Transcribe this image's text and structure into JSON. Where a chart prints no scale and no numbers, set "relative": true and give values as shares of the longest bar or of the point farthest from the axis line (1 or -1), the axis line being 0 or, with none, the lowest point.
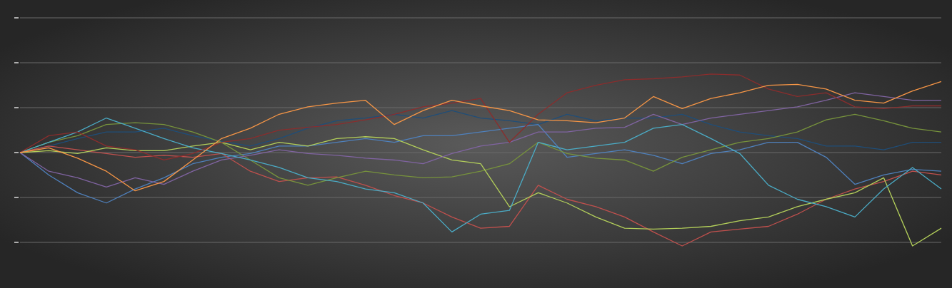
{
  "chart_data": {
    "type": "line",
    "relative": true,
    "grid": "y",
    "categories": [
      null,
      null,
      null,
      null,
      null,
      null,
      null,
      null,
      null,
      null,
      null,
      null,
      null,
      null,
      null,
      null,
      null,
      null,
      null,
      null,
      null,
      null,
      null,
      null,
      null,
      null,
      null,
      null,
      null,
      null,
      null,
      null,
      null
    ],
    "series": [
      {
        "color": "#1f4e79",
        "values": [
          0,
          0.07,
          0.15,
          0.22,
          0.22,
          0.26,
          0.18,
          0.12,
          0.07,
          0.15,
          0.26,
          0.34,
          0.37,
          0.41,
          0.37,
          0.45,
          0.37,
          0.34,
          0.3,
          0.41,
          0.34,
          0.37,
          0.37,
          0.41,
          0.3,
          0.22,
          0.18,
          0.15,
          0.07,
          0.07,
          0.03,
          0.11,
          0.11
        ]
      },
      {
        "color": "#4f81bd",
        "values": [
          0,
          -0.24,
          -0.43,
          -0.54,
          -0.39,
          -0.27,
          -0.12,
          -0.05,
          -0.01,
          0.07,
          0.07,
          0.11,
          0.15,
          0.11,
          0.18,
          0.18,
          0.22,
          0.26,
          0.3,
          -0.05,
          -0.01,
          0.03,
          -0.03,
          -0.12,
          -0.01,
          0.03,
          0.11,
          0.11,
          -0.05,
          -0.34,
          -0.24,
          -0.18,
          -0.2
        ]
      },
      {
        "color": "#c0504d",
        "values": [
          0,
          0.07,
          0.03,
          -0.01,
          -0.05,
          -0.03,
          -0.05,
          -0.01,
          -0.2,
          -0.31,
          -0.27,
          -0.26,
          -0.35,
          -0.46,
          -0.54,
          -0.69,
          -0.81,
          -0.79,
          -0.35,
          -0.5,
          -0.58,
          -0.69,
          -0.85,
          -1,
          -0.85,
          -0.82,
          -0.79,
          -0.66,
          -0.5,
          -0.39,
          -0.31,
          -0.2,
          -0.24
        ]
      },
      {
        "color": "#77933c",
        "values": [
          0,
          0.11,
          0.18,
          0.3,
          0.32,
          0.3,
          0.22,
          0.11,
          -0.08,
          -0.27,
          -0.35,
          -0.27,
          -0.2,
          -0.24,
          -0.27,
          -0.26,
          -0.2,
          -0.12,
          0.11,
          -0.01,
          -0.06,
          -0.08,
          -0.2,
          -0.05,
          0.03,
          0.11,
          0.15,
          0.22,
          0.35,
          0.41,
          0.34,
          0.26,
          0.22
        ]
      },
      {
        "color": "#b3cf5a",
        "values": [
          0,
          0.02,
          -0.01,
          0.05,
          0.02,
          0.02,
          0.07,
          0.11,
          0.03,
          0.11,
          0.07,
          0.15,
          0.17,
          0.15,
          0.03,
          -0.08,
          -0.12,
          -0.58,
          -0.43,
          -0.54,
          -0.69,
          -0.81,
          -0.82,
          -0.81,
          -0.79,
          -0.73,
          -0.69,
          -0.58,
          -0.5,
          -0.43,
          -0.27,
          -1,
          -0.81
        ]
      },
      {
        "color": "#8064a2",
        "values": [
          0,
          -0.2,
          -0.27,
          -0.37,
          -0.27,
          -0.34,
          -0.2,
          -0.08,
          -0.03,
          0.03,
          -0.01,
          -0.03,
          -0.06,
          -0.08,
          -0.12,
          -0.01,
          0.07,
          0.11,
          0.22,
          0.22,
          0.26,
          0.27,
          0.41,
          0.3,
          0.37,
          0.41,
          0.45,
          0.49,
          0.56,
          0.64,
          0.6,
          0.56,
          0.56
        ]
      },
      {
        "color": "#4bacc6",
        "values": [
          0,
          0.11,
          0.22,
          0.37,
          0.26,
          0.15,
          0.05,
          -0.01,
          -0.08,
          -0.16,
          -0.27,
          -0.31,
          -0.39,
          -0.43,
          -0.54,
          -0.85,
          -0.66,
          -0.62,
          0.11,
          0.03,
          0.07,
          0.11,
          0.26,
          0.3,
          0.15,
          -0.01,
          -0.35,
          -0.5,
          -0.58,
          -0.69,
          -0.39,
          -0.16,
          -0.39
        ]
      },
      {
        "color": "#8b2d2d",
        "values": [
          0,
          0.18,
          0.22,
          0.07,
          0.03,
          -0.08,
          -0.01,
          0.11,
          0.15,
          0.24,
          0.27,
          0.3,
          0.35,
          0.41,
          0.49,
          0.53,
          0.58,
          0.11,
          0.41,
          0.64,
          0.72,
          0.78,
          0.79,
          0.81,
          0.84,
          0.83,
          0.68,
          0.6,
          0.64,
          0.49,
          0.47,
          0.5,
          0.5
        ]
      },
      {
        "color": "#f79646",
        "values": [
          0,
          0.05,
          -0.06,
          -0.2,
          -0.41,
          -0.31,
          -0.08,
          0.15,
          0.26,
          0.41,
          0.49,
          0.53,
          0.56,
          0.3,
          0.45,
          0.56,
          0.5,
          0.45,
          0.35,
          0.34,
          0.32,
          0.37,
          0.6,
          0.47,
          0.58,
          0.64,
          0.72,
          0.73,
          0.68,
          0.56,
          0.53,
          0.66,
          0.76
        ]
      }
    ]
  }
}
